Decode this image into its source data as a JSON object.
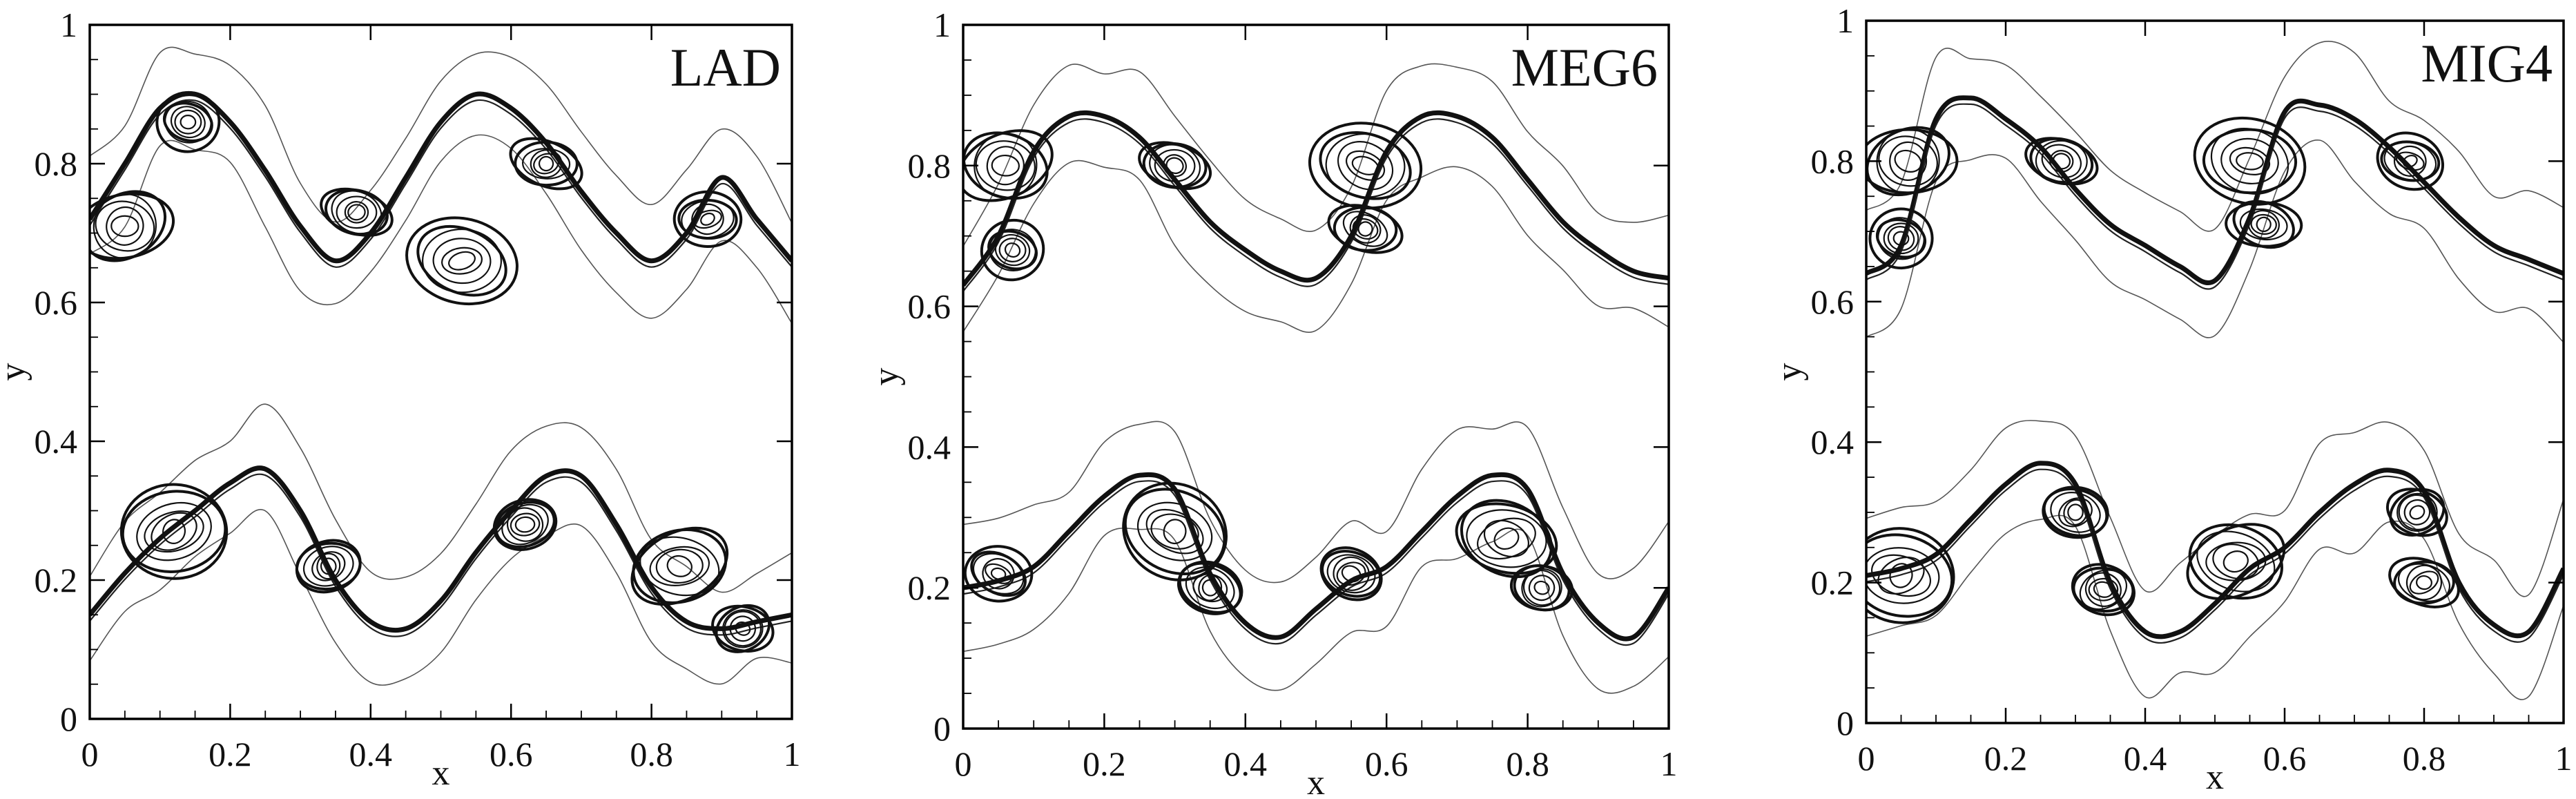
{
  "chart_data": [
    {
      "type": "contour",
      "title": "LAD",
      "xlabel": "x",
      "ylabel": "y",
      "xlim": [
        0,
        1
      ],
      "ylim": [
        0,
        1
      ],
      "xticks": [
        "0",
        "0.2",
        "0.4",
        "0.6",
        "0.8",
        "1"
      ],
      "yticks": [
        "0",
        "0.2",
        "0.4",
        "0.6",
        "0.8",
        "1"
      ],
      "grid": false,
      "series": [
        {
          "x": [
            0,
            0.05,
            0.1,
            0.15,
            0.2,
            0.25,
            0.3,
            0.35,
            0.4,
            0.45,
            0.5,
            0.55,
            0.6,
            0.65,
            0.7,
            0.75,
            0.8,
            0.85,
            0.9,
            0.95,
            1
          ],
          "y": [
            0.72,
            0.8,
            0.88,
            0.9,
            0.86,
            0.79,
            0.71,
            0.66,
            0.7,
            0.78,
            0.86,
            0.9,
            0.88,
            0.83,
            0.76,
            0.7,
            0.66,
            0.7,
            0.78,
            0.72,
            0.66
          ]
        },
        {
          "x": [
            0,
            0.05,
            0.1,
            0.15,
            0.2,
            0.25,
            0.3,
            0.35,
            0.4,
            0.45,
            0.5,
            0.55,
            0.6,
            0.65,
            0.7,
            0.75,
            0.8,
            0.85,
            0.9,
            0.95,
            1
          ],
          "y": [
            0.15,
            0.21,
            0.26,
            0.3,
            0.34,
            0.36,
            0.3,
            0.2,
            0.14,
            0.13,
            0.17,
            0.24,
            0.3,
            0.35,
            0.35,
            0.28,
            0.19,
            0.14,
            0.13,
            0.14,
            0.15
          ]
        }
      ],
      "vortices": [
        [
          0.05,
          0.71
        ],
        [
          0.14,
          0.86
        ],
        [
          0.38,
          0.73
        ],
        [
          0.53,
          0.66
        ],
        [
          0.65,
          0.8
        ],
        [
          0.88,
          0.72
        ],
        [
          0.12,
          0.27
        ],
        [
          0.34,
          0.22
        ],
        [
          0.62,
          0.28
        ],
        [
          0.84,
          0.22
        ],
        [
          0.93,
          0.13
        ]
      ]
    },
    {
      "type": "contour",
      "title": "MEG6",
      "xlabel": "x",
      "ylabel": "y",
      "xlim": [
        0,
        1
      ],
      "ylim": [
        0,
        1
      ],
      "xticks": [
        "0",
        "0.2",
        "0.4",
        "0.6",
        "0.8",
        "1"
      ],
      "yticks": [
        "0",
        "0.2",
        "0.4",
        "0.6",
        "0.8",
        "1"
      ],
      "grid": false,
      "series": [
        {
          "x": [
            0,
            0.05,
            0.1,
            0.15,
            0.2,
            0.25,
            0.3,
            0.35,
            0.4,
            0.45,
            0.5,
            0.55,
            0.6,
            0.65,
            0.7,
            0.75,
            0.8,
            0.85,
            0.9,
            0.95,
            1
          ],
          "y": [
            0.63,
            0.7,
            0.82,
            0.87,
            0.87,
            0.84,
            0.78,
            0.72,
            0.68,
            0.65,
            0.64,
            0.7,
            0.82,
            0.87,
            0.87,
            0.84,
            0.78,
            0.72,
            0.68,
            0.65,
            0.64
          ]
        },
        {
          "x": [
            0,
            0.05,
            0.1,
            0.15,
            0.2,
            0.25,
            0.3,
            0.35,
            0.4,
            0.45,
            0.5,
            0.55,
            0.6,
            0.65,
            0.7,
            0.75,
            0.8,
            0.85,
            0.9,
            0.95,
            1
          ],
          "y": [
            0.2,
            0.21,
            0.23,
            0.28,
            0.33,
            0.36,
            0.34,
            0.22,
            0.15,
            0.13,
            0.17,
            0.21,
            0.23,
            0.28,
            0.33,
            0.36,
            0.34,
            0.22,
            0.15,
            0.13,
            0.2
          ]
        }
      ],
      "vortices": [
        [
          0.06,
          0.8
        ],
        [
          0.07,
          0.68
        ],
        [
          0.3,
          0.8
        ],
        [
          0.57,
          0.8
        ],
        [
          0.57,
          0.71
        ],
        [
          0.05,
          0.22
        ],
        [
          0.3,
          0.28
        ],
        [
          0.35,
          0.2
        ],
        [
          0.55,
          0.22
        ],
        [
          0.77,
          0.27
        ],
        [
          0.82,
          0.2
        ]
      ]
    },
    {
      "type": "contour",
      "title": "MIG4",
      "xlabel": "x",
      "ylabel": "y",
      "xlim": [
        0,
        1
      ],
      "ylim": [
        0,
        1
      ],
      "xticks": [
        "0",
        "0.2",
        "0.4",
        "0.6",
        "0.8",
        "1"
      ],
      "yticks": [
        "0",
        "0.2",
        "0.4",
        "0.6",
        "0.8",
        "1"
      ],
      "grid": false,
      "series": [
        {
          "x": [
            0,
            0.05,
            0.1,
            0.15,
            0.2,
            0.25,
            0.3,
            0.35,
            0.4,
            0.45,
            0.5,
            0.55,
            0.6,
            0.65,
            0.7,
            0.75,
            0.8,
            0.85,
            0.9,
            0.95,
            1
          ],
          "y": [
            0.64,
            0.68,
            0.86,
            0.89,
            0.86,
            0.82,
            0.76,
            0.71,
            0.68,
            0.65,
            0.63,
            0.72,
            0.87,
            0.88,
            0.86,
            0.82,
            0.77,
            0.72,
            0.68,
            0.66,
            0.64
          ]
        },
        {
          "x": [
            0,
            0.05,
            0.1,
            0.15,
            0.2,
            0.25,
            0.3,
            0.35,
            0.4,
            0.45,
            0.5,
            0.55,
            0.6,
            0.65,
            0.7,
            0.75,
            0.8,
            0.85,
            0.9,
            0.95,
            1
          ],
          "y": [
            0.21,
            0.22,
            0.24,
            0.29,
            0.34,
            0.37,
            0.34,
            0.2,
            0.13,
            0.13,
            0.17,
            0.22,
            0.25,
            0.3,
            0.34,
            0.36,
            0.33,
            0.2,
            0.14,
            0.13,
            0.22
          ]
        }
      ],
      "vortices": [
        [
          0.06,
          0.8
        ],
        [
          0.05,
          0.69
        ],
        [
          0.28,
          0.8
        ],
        [
          0.55,
          0.8
        ],
        [
          0.57,
          0.71
        ],
        [
          0.78,
          0.8
        ],
        [
          0.05,
          0.21
        ],
        [
          0.3,
          0.3
        ],
        [
          0.34,
          0.19
        ],
        [
          0.53,
          0.23
        ],
        [
          0.79,
          0.3
        ],
        [
          0.8,
          0.2
        ]
      ]
    }
  ]
}
